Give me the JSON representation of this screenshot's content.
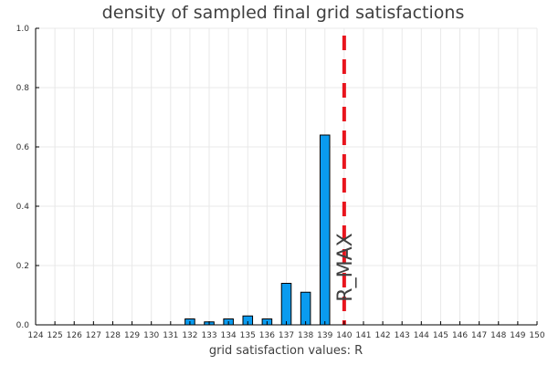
{
  "chart_data": {
    "type": "bar",
    "title": "density of sampled final grid satisfactions",
    "xlabel": "grid satisfaction values: R",
    "ylabel": "",
    "xlim": [
      124,
      150
    ],
    "ylim": [
      0,
      1.0
    ],
    "x_ticks": [
      124,
      125,
      126,
      127,
      128,
      129,
      130,
      131,
      132,
      133,
      134,
      135,
      136,
      137,
      138,
      139,
      140,
      141,
      142,
      143,
      144,
      145,
      146,
      147,
      148,
      149,
      150
    ],
    "y_ticks": [
      0.0,
      0.2,
      0.4,
      0.6,
      0.8,
      1.0
    ],
    "y_tick_labels": [
      "0.0",
      "0.2",
      "0.4",
      "0.6",
      "0.8",
      "1.0"
    ],
    "grid": true,
    "bar_color": "#0a9bef",
    "bars": [
      {
        "x": 132,
        "value": 0.02
      },
      {
        "x": 133,
        "value": 0.01
      },
      {
        "x": 134,
        "value": 0.02
      },
      {
        "x": 135,
        "value": 0.03
      },
      {
        "x": 136,
        "value": 0.02
      },
      {
        "x": 137,
        "value": 0.14
      },
      {
        "x": 138,
        "value": 0.11
      },
      {
        "x": 139,
        "value": 0.64
      }
    ],
    "reference_line": {
      "x": 140,
      "label": "R_MAX",
      "color": "#e8141d",
      "style": "dashed"
    }
  }
}
